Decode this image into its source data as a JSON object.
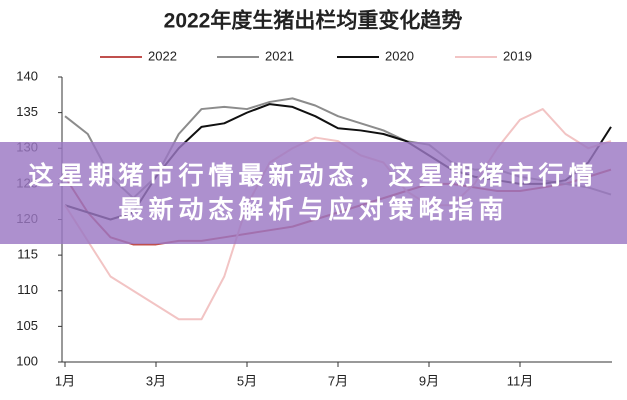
{
  "chart_data": {
    "type": "line",
    "title": "2022年度生猪出栏均重变化趋势",
    "categories": [
      "1月",
      null,
      null,
      null,
      "3月",
      null,
      null,
      null,
      "5月",
      null,
      null,
      null,
      "7月",
      null,
      null,
      null,
      "9月",
      null,
      null,
      null,
      "11月",
      null,
      null,
      null,
      null
    ],
    "series": [
      {
        "name": "2022",
        "color": "#c0504d",
        "values": [
          126,
          121,
          117.5,
          116.5,
          116.5,
          117,
          117,
          117.5,
          118,
          118.5,
          119,
          120,
          121,
          122,
          123,
          124,
          125,
          125,
          124.5,
          124,
          124,
          124.5,
          125,
          126,
          127
        ]
      },
      {
        "name": "2021",
        "color": "#8c8c8c",
        "values": [
          134.5,
          132,
          126,
          123,
          126,
          132,
          135.5,
          135.8,
          135.5,
          136.5,
          137,
          136,
          134.5,
          133.5,
          132.5,
          131,
          130.5,
          128,
          127,
          127,
          126,
          125.5,
          125,
          124.5,
          123.5
        ]
      },
      {
        "name": "2020",
        "color": "#111111",
        "values": [
          122,
          121,
          120,
          121,
          126,
          130,
          133,
          133.5,
          135,
          136.2,
          135.8,
          134.5,
          132.8,
          132.5,
          132,
          131,
          129,
          127,
          126,
          125.5,
          125,
          125,
          125.5,
          128,
          133
        ]
      },
      {
        "name": "2019",
        "color": "#f2c4c4",
        "values": [
          122,
          117,
          112,
          110,
          108,
          106,
          106,
          112,
          122,
          128,
          130,
          131.5,
          131,
          129,
          128,
          124,
          122,
          122,
          125,
          130,
          134,
          135.5,
          132,
          130,
          131
        ]
      }
    ],
    "ylim": [
      100,
      140
    ],
    "yticks": [
      100,
      105,
      110,
      115,
      120,
      125,
      130,
      135,
      140
    ],
    "grid": false,
    "legend": "top"
  },
  "banner": {
    "text": "这星期猪市行情最新动态，这星期猪市行情最新动态解析与应对策略指南"
  }
}
